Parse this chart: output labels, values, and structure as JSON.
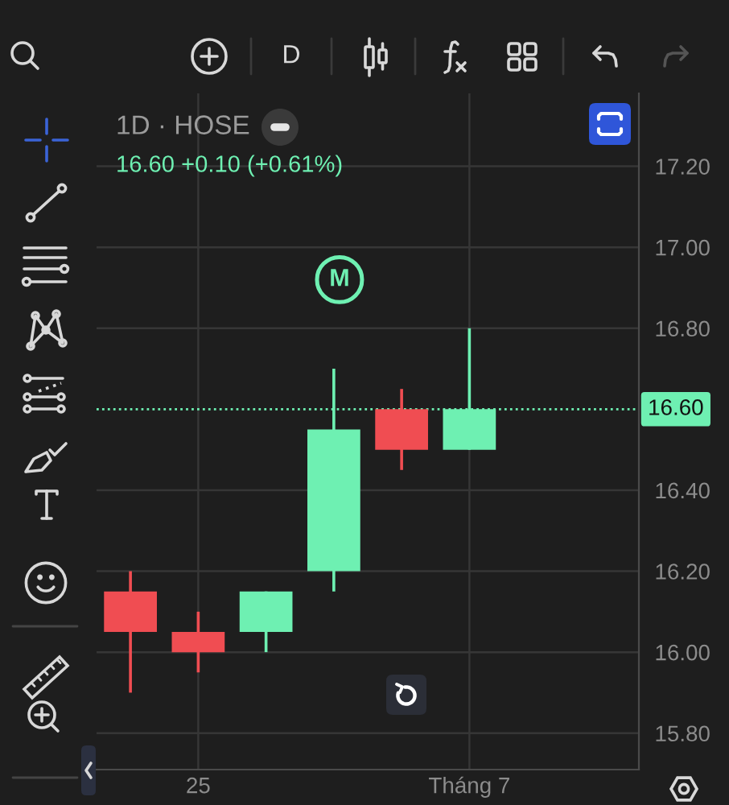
{
  "chart_data": {
    "type": "candlestick",
    "title": "1D · HOSE",
    "subtitle": "16.60 +0.10 (+0.61%)",
    "categories": [
      null,
      "25",
      null,
      null,
      null,
      "Tháng 7",
      null,
      null
    ],
    "ohlc": [
      [
        16.15,
        16.2,
        15.9,
        16.05
      ],
      [
        16.05,
        16.1,
        15.95,
        16.0
      ],
      [
        16.05,
        16.15,
        16.0,
        16.15
      ],
      [
        16.2,
        16.7,
        16.15,
        16.55
      ],
      [
        16.6,
        16.65,
        16.45,
        16.5
      ],
      [
        16.5,
        16.8,
        16.5,
        16.6
      ],
      null,
      null
    ],
    "colors": [
      "#f04d52",
      "#f04d52",
      "#6ef0b2",
      "#6ef0b2",
      "#f04d52",
      "#6ef0b2",
      null,
      null
    ],
    "ylim": [
      15.71,
      17.38
    ],
    "yticks": [
      {
        "value": 15.8,
        "label": "15.80"
      },
      {
        "value": 16.0,
        "label": "16.00"
      },
      {
        "value": 16.2,
        "label": "16.20"
      },
      {
        "value": 16.4,
        "label": "16.40"
      },
      {
        "value": 16.8,
        "label": "16.80"
      },
      {
        "value": 17.0,
        "label": "17.00"
      },
      {
        "value": 17.2,
        "label": "17.20"
      }
    ],
    "grid": true,
    "ref_lines": [
      {
        "axis": "y",
        "value": 16.6,
        "label": "16.60",
        "color": "#6ef0b2",
        "line_style": "dotted"
      }
    ],
    "annotations": [
      "D",
      {
        "text": "M",
        "y": 16.92
      }
    ]
  }
}
